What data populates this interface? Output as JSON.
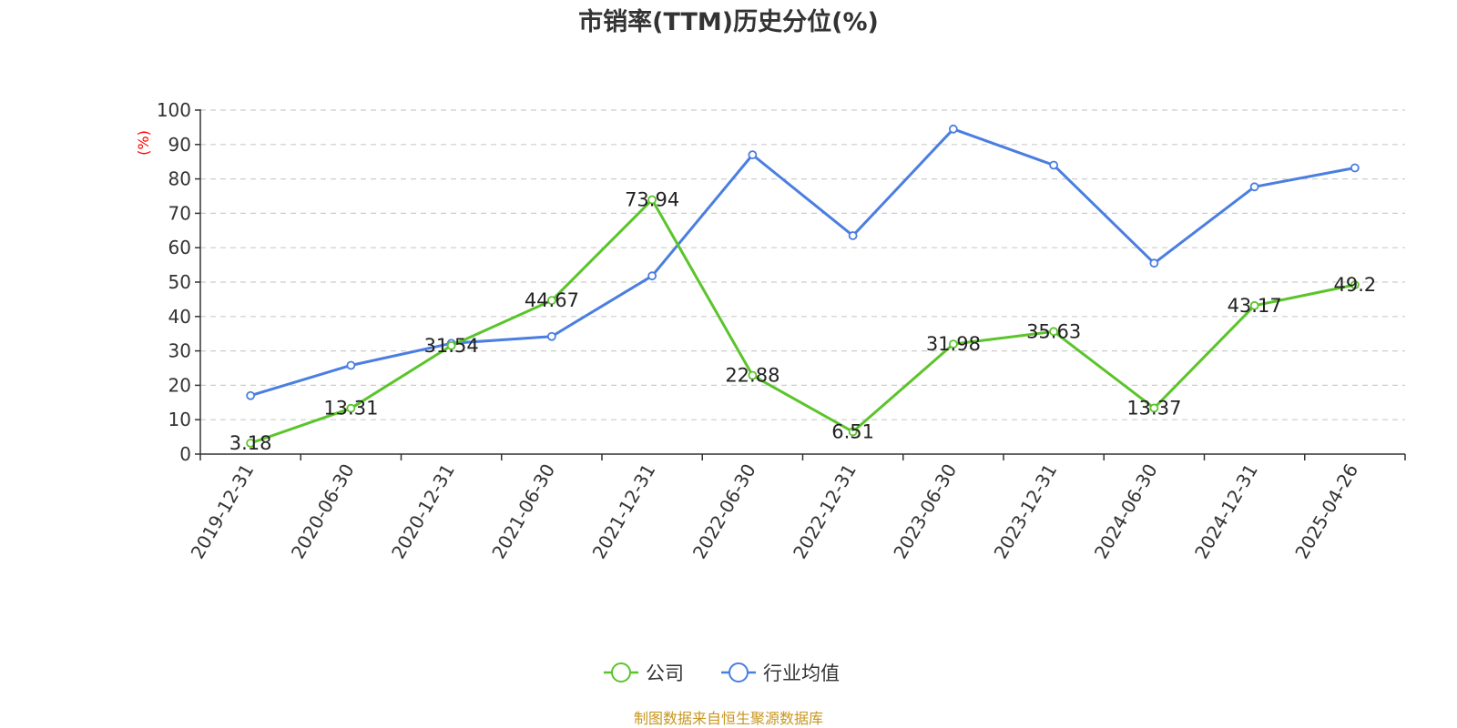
{
  "chart_data": {
    "type": "line",
    "title": "市销率(TTM)历史分位(%)",
    "ylabel": "(%)",
    "xlabel": "",
    "ylim": [
      0,
      100
    ],
    "yticks": [
      0,
      10,
      20,
      30,
      40,
      50,
      60,
      70,
      80,
      90,
      100
    ],
    "grid": true,
    "legend_position": "bottom",
    "categories": [
      "2019-12-31",
      "2020-06-30",
      "2020-12-31",
      "2021-06-30",
      "2021-12-31",
      "2022-06-30",
      "2022-12-31",
      "2023-06-30",
      "2023-12-31",
      "2024-06-30",
      "2024-12-31",
      "2025-04-26"
    ],
    "series": [
      {
        "name": "公司",
        "color": "#5bc42b",
        "values": [
          3.18,
          13.31,
          31.54,
          44.67,
          73.94,
          22.88,
          6.51,
          31.98,
          35.63,
          13.37,
          43.17,
          49.2
        ],
        "labels": [
          "3.18",
          "13.31",
          "31.54",
          "44.67",
          "73.94",
          "22.88",
          "6.51",
          "31.98",
          "35.63",
          "13.37",
          "43.17",
          "49.2"
        ]
      },
      {
        "name": "行业均值",
        "color": "#4a7ee0",
        "values": [
          17.0,
          25.8,
          32.2,
          34.2,
          51.8,
          87.0,
          63.5,
          94.5,
          84.0,
          55.5,
          77.7,
          83.2
        ]
      }
    ],
    "source": "制图数据来自恒生聚源数据库"
  },
  "colors": {
    "title": "#333333",
    "axis": "#333333",
    "grid": "#cccccc",
    "ylabel": "#ff0000",
    "source": "#c8961e"
  }
}
